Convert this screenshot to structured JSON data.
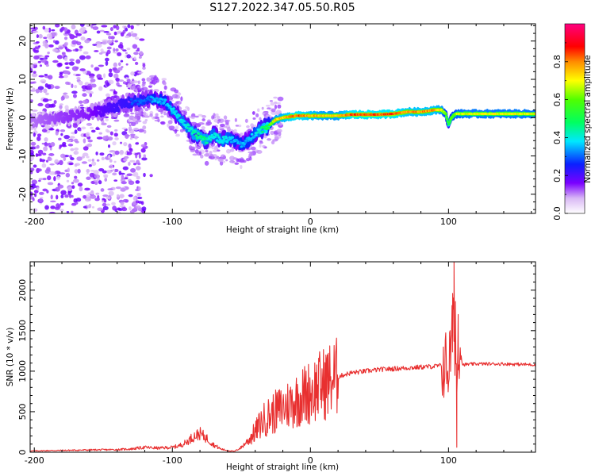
{
  "title": "S127.2022.347.05.50.R05",
  "chart_data": [
    {
      "type": "heatmap",
      "xlabel": "Height of straight line (km)",
      "ylabel": "Frequency (Hz)",
      "xlim": [
        -203,
        163
      ],
      "ylim": [
        -25,
        24.5
      ],
      "xticks": [
        -200,
        -100,
        0,
        100
      ],
      "yticks": [
        20,
        10,
        0,
        -10,
        -20
      ],
      "xtick_labels": [
        "-200",
        "-100",
        "0",
        "100"
      ],
      "ytick_labels": [
        "20",
        "10",
        "0",
        "-10",
        "-20"
      ],
      "colorbar": {
        "label": "Normalized spectral amplitude",
        "range": [
          0,
          1
        ],
        "ticks": [
          0.0,
          0.2,
          0.4,
          0.6,
          0.8
        ],
        "tick_labels": [
          "0.0",
          "0.2",
          "0.4",
          "0.6",
          "0.8"
        ],
        "colormap": "white-purple-blue-cyan-green-yellow-red-magenta"
      },
      "ridge": {
        "x": [
          -200,
          -180,
          -160,
          -150,
          -140,
          -130,
          -120,
          -112,
          -105,
          -100,
          -95,
          -90,
          -85,
          -80,
          -75,
          -70,
          -65,
          -60,
          -55,
          -50,
          -45,
          -40,
          -35,
          -30,
          -25,
          -20,
          -10,
          0,
          10,
          20,
          30,
          40,
          50,
          60,
          70,
          80,
          90,
          95,
          98,
          100,
          102,
          105,
          110,
          120,
          130,
          140,
          150,
          163
        ],
        "freq_hz": [
          -1,
          0,
          1,
          2,
          3,
          4,
          4.5,
          5,
          4,
          2,
          0,
          -2,
          -4,
          -5,
          -6,
          -4.5,
          -6,
          -5.5,
          -6,
          -7,
          -6,
          -4,
          -3,
          -2,
          -0.5,
          0,
          0.5,
          0.5,
          0.5,
          0.5,
          0.8,
          0.8,
          0.8,
          1,
          1.5,
          1.5,
          2,
          2,
          1,
          -2,
          0,
          1,
          1,
          1,
          1,
          1,
          1,
          1
        ],
        "amplitude": [
          0.15,
          0.18,
          0.2,
          0.25,
          0.28,
          0.3,
          0.3,
          0.35,
          0.35,
          0.38,
          0.4,
          0.4,
          0.45,
          0.45,
          0.45,
          0.4,
          0.4,
          0.4,
          0.35,
          0.35,
          0.35,
          0.38,
          0.45,
          0.55,
          0.75,
          0.78,
          0.85,
          0.8,
          0.75,
          0.75,
          0.85,
          0.85,
          0.85,
          0.85,
          0.8,
          0.8,
          0.8,
          0.75,
          0.6,
          0.5,
          0.6,
          0.65,
          0.7,
          0.7,
          0.7,
          0.7,
          0.7,
          0.7
        ]
      }
    },
    {
      "type": "line",
      "xlabel": "Height of straight line (km)",
      "ylabel": "SNR (10 * v/v)",
      "xlim": [
        -203,
        163
      ],
      "ylim": [
        0,
        2350
      ],
      "xticks": [
        -200,
        -100,
        0,
        100
      ],
      "yticks": [
        0,
        500,
        1000,
        1500,
        2000
      ],
      "xtick_labels": [
        "-200",
        "-100",
        "0",
        "100"
      ],
      "ytick_labels": [
        "0",
        "500",
        "1000",
        "1500",
        "2000"
      ],
      "color": "#e83030",
      "series": [
        {
          "x": [
            -203,
            -190,
            -180,
            -170,
            -160,
            -150,
            -140,
            -130,
            -125,
            -120,
            -115,
            -110,
            -100,
            -95,
            -90,
            -85,
            -80,
            -75,
            -70,
            -65,
            -60,
            -55,
            -50,
            -45,
            -40,
            -35,
            -30,
            -25,
            -20,
            -15,
            -10,
            -5,
            0,
            5,
            10,
            15,
            20,
            25,
            30,
            40,
            50,
            60,
            70,
            80,
            90,
            95,
            98,
            100,
            102,
            104,
            106,
            108,
            110,
            120,
            130,
            140,
            150,
            163
          ],
          "y": [
            15,
            20,
            22,
            25,
            28,
            30,
            32,
            40,
            50,
            60,
            55,
            50,
            60,
            80,
            120,
            190,
            230,
            170,
            90,
            40,
            20,
            10,
            60,
            150,
            250,
            380,
            450,
            500,
            550,
            600,
            650,
            700,
            750,
            800,
            850,
            900,
            930,
            960,
            980,
            1000,
            1020,
            1030,
            1040,
            1050,
            1060,
            1070,
            1080,
            1050,
            1300,
            1600,
            900,
            1400,
            1080,
            1090,
            1090,
            1090,
            1085,
            1080
          ]
        }
      ],
      "annotations_spikes": [
        {
          "x": 103,
          "y": 1960
        },
        {
          "x": 104,
          "y": 2350
        },
        {
          "x": 105,
          "y": 1860
        },
        {
          "x": 106,
          "y": 60
        },
        {
          "x": 107,
          "y": 1700
        }
      ]
    }
  ]
}
